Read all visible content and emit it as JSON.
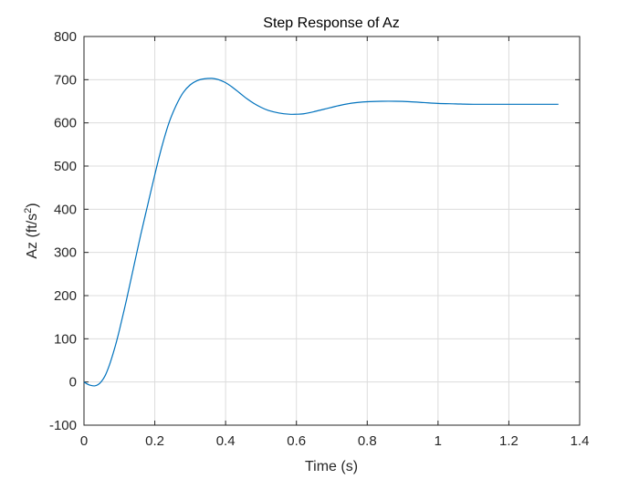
{
  "chart_data": {
    "type": "line",
    "title": "Step Response of Az",
    "xlabel": "Time (s)",
    "ylabel_base": "Az (ft/s",
    "ylabel_sup": "2",
    "ylabel_close": ")",
    "xlim": [
      0,
      1.4
    ],
    "ylim": [
      -100,
      800
    ],
    "xticks": [
      0,
      0.2,
      0.4,
      0.6,
      0.8,
      1,
      1.2,
      1.4
    ],
    "xtick_labels": [
      "0",
      "0.2",
      "0.4",
      "0.6",
      "0.8",
      "1",
      "1.2",
      "1.4"
    ],
    "yticks": [
      -100,
      0,
      100,
      200,
      300,
      400,
      500,
      600,
      700,
      800
    ],
    "ytick_labels": [
      "-100",
      "0",
      "100",
      "200",
      "300",
      "400",
      "500",
      "600",
      "700",
      "800"
    ],
    "grid": true,
    "line_color": "#0072BD",
    "series": [
      {
        "x": [
          0,
          0.01,
          0.02,
          0.03,
          0.04,
          0.05,
          0.06,
          0.07,
          0.08,
          0.09,
          0.1,
          0.12,
          0.14,
          0.16,
          0.18,
          0.2,
          0.22,
          0.24,
          0.26,
          0.28,
          0.3,
          0.32,
          0.34,
          0.36,
          0.37,
          0.38,
          0.4,
          0.42,
          0.44,
          0.46,
          0.48,
          0.5,
          0.52,
          0.55,
          0.58,
          0.6,
          0.62,
          0.65,
          0.68,
          0.72,
          0.76,
          0.8,
          0.84,
          0.88,
          0.92,
          0.96,
          1.0,
          1.05,
          1.1,
          1.2,
          1.3,
          1.34
        ],
        "y": [
          0,
          -5,
          -8,
          -9,
          -6,
          2,
          15,
          35,
          60,
          88,
          120,
          190,
          265,
          340,
          410,
          480,
          545,
          600,
          640,
          670,
          688,
          698,
          702,
          703,
          702,
          700,
          693,
          682,
          669,
          656,
          645,
          636,
          629,
          623,
          620,
          620,
          621,
          626,
          632,
          640,
          646,
          649,
          650,
          650,
          649,
          647,
          645,
          644,
          643,
          643,
          643,
          643
        ]
      }
    ]
  }
}
